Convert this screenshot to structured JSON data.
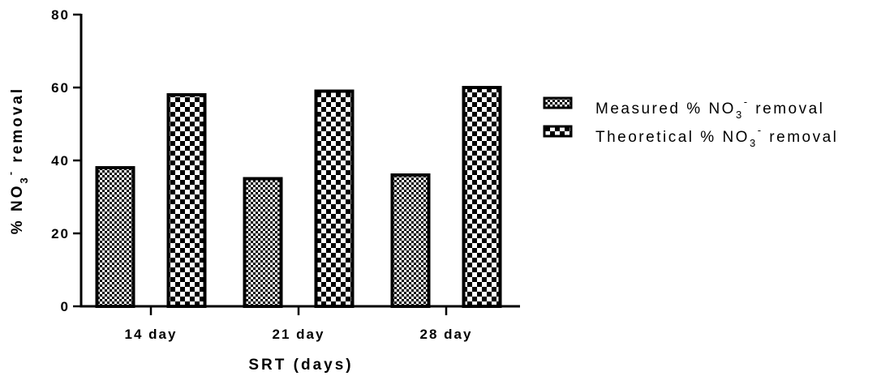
{
  "chart_data": {
    "type": "bar",
    "xlabel": "SRT (days)",
    "ylabel": "% NO3- removal",
    "ylabel_parts": {
      "main": "% NO",
      "sub": "3",
      "sup": "-",
      "rest": " removal"
    },
    "categories": [
      "14 day",
      "21 day",
      "28 day"
    ],
    "ylim": [
      0,
      80
    ],
    "yticks": [
      "0",
      "20",
      "40",
      "60",
      "80"
    ],
    "grid": false,
    "legend_position": "right",
    "series": [
      {
        "name": "Measured % NO3- removal",
        "name_parts": {
          "main": "Measured % NO",
          "sub": "3",
          "sup": "-",
          "rest": " removal"
        },
        "pattern": "fine-checker",
        "values": [
          38,
          35,
          36
        ]
      },
      {
        "name": "Theoretical % NO3- removal",
        "name_parts": {
          "main": "Theoretical % NO",
          "sub": "3",
          "sup": "-",
          "rest": " removal"
        },
        "pattern": "coarse-checker",
        "values": [
          58,
          59,
          60
        ]
      }
    ]
  }
}
